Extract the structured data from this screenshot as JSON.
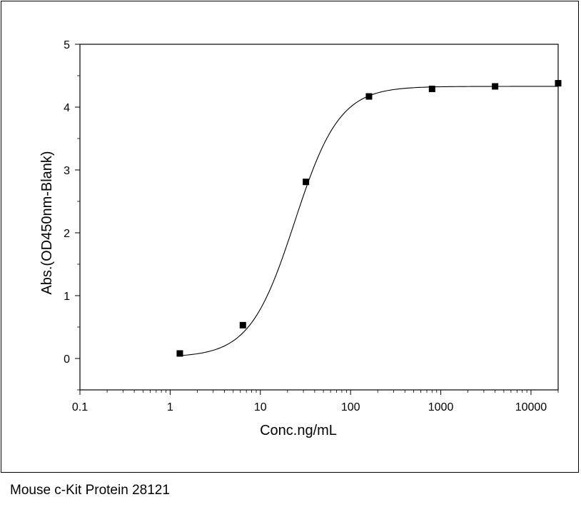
{
  "caption": "Mouse c-Kit Protein 28121",
  "chart_data": {
    "type": "scatter",
    "xlabel": "Conc.ng/mL",
    "ylabel": "Abs.(OD450nm-Blank)",
    "x_scale": "log",
    "xlim": [
      0.1,
      20000
    ],
    "ylim": [
      -0.5,
      5
    ],
    "x_ticks": [
      0.1,
      1,
      10,
      100,
      1000,
      10000
    ],
    "x_tick_labels": [
      "0.1",
      "1",
      "10",
      "100",
      "1000",
      "10000"
    ],
    "y_ticks": [
      0,
      1,
      2,
      3,
      4,
      5
    ],
    "y_tick_labels": [
      "0",
      "1",
      "2",
      "3",
      "4",
      "5"
    ],
    "grid": false,
    "series": [
      {
        "points": [
          {
            "x": 1.28,
            "y": 0.08
          },
          {
            "x": 6.4,
            "y": 0.53
          },
          {
            "x": 32,
            "y": 2.81
          },
          {
            "x": 160,
            "y": 4.17
          },
          {
            "x": 800,
            "y": 4.29
          },
          {
            "x": 4000,
            "y": 4.33
          },
          {
            "x": 20000,
            "y": 4.38
          }
        ],
        "fit": "4-parameter logistic",
        "color": "#000000",
        "marker": "square"
      }
    ]
  }
}
